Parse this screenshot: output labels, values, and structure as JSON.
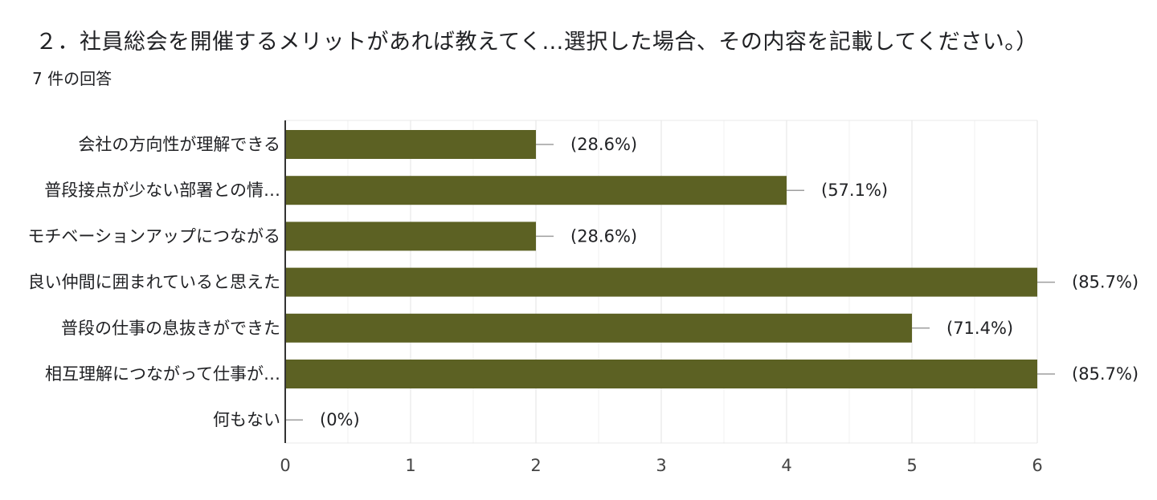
{
  "question": {
    "title": "２．社員総会を開催するメリットがあれば教えてく…選択した場合、その内容を記載してください。）",
    "response_count": "7 件の回答"
  },
  "colors": {
    "bar": "#5c6123",
    "grid": "#e8e8e8",
    "axis": "#333333",
    "whisker": "#9e9e9e"
  },
  "chart_data": {
    "type": "bar",
    "orientation": "horizontal",
    "categories": [
      "会社の方向性が理解できる",
      "普段接点が少ない部署との情…",
      "モチベーションアップにつながる",
      "良い仲間に囲まれていると思えた",
      "普段の仕事の息抜きができた",
      "相互理解につながって仕事が…",
      "何もない"
    ],
    "values": [
      2,
      4,
      2,
      6,
      5,
      6,
      0
    ],
    "value_labels": [
      "(28.6%)",
      "(57.1%)",
      "(28.6%)",
      "(85.7%)",
      "(71.4%)",
      "(85.7%)",
      "(0%)"
    ],
    "xlim": [
      0,
      6
    ],
    "xticks": [
      "0",
      "1",
      "2",
      "3",
      "4",
      "5",
      "6"
    ],
    "grid": true
  }
}
